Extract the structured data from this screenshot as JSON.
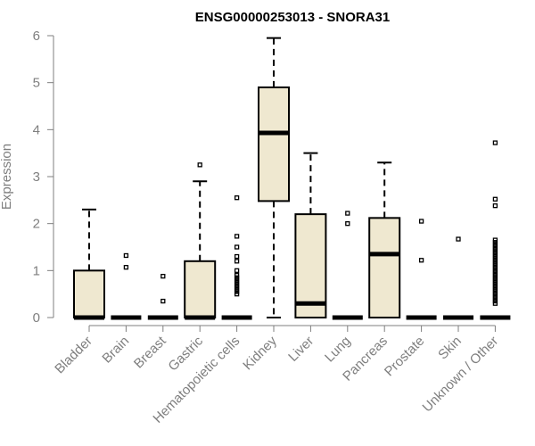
{
  "chart_data": {
    "type": "box",
    "title": "ENSG00000253013 - SNORA31",
    "xlabel": "",
    "ylabel": "Expression",
    "ylim": [
      0,
      6
    ],
    "yticks": [
      0,
      1,
      2,
      3,
      4,
      5,
      6
    ],
    "categories": [
      "Bladder",
      "Brain",
      "Breast",
      "Gastric",
      "Hematopoietic cells",
      "Kidney",
      "Liver",
      "Lung",
      "Pancreas",
      "Prostate",
      "Skin",
      "Unknown / Other"
    ],
    "box_color": "#efe8d0",
    "boxes": [
      {
        "category": "Bladder",
        "q1": 0,
        "median": 0,
        "q3": 1.0,
        "whisker_low": 0,
        "whisker_high": 2.3,
        "outliers": []
      },
      {
        "category": "Brain",
        "q1": 0,
        "median": 0,
        "q3": 0,
        "whisker_low": 0,
        "whisker_high": 0,
        "outliers": [
          1.07,
          1.32
        ]
      },
      {
        "category": "Breast",
        "q1": 0,
        "median": 0,
        "q3": 0,
        "whisker_low": 0,
        "whisker_high": 0,
        "outliers": [
          0.35,
          0.88
        ]
      },
      {
        "category": "Gastric",
        "q1": 0,
        "median": 0,
        "q3": 1.2,
        "whisker_low": 0,
        "whisker_high": 2.9,
        "outliers": [
          3.25
        ]
      },
      {
        "category": "Hematopoietic cells",
        "q1": 0,
        "median": 0,
        "q3": 0,
        "whisker_low": 0,
        "whisker_high": 0,
        "outliers": [
          0.5,
          0.55,
          0.6,
          0.65,
          0.7,
          0.75,
          0.8,
          0.85,
          0.9,
          1.0,
          1.2,
          1.3,
          1.5,
          1.73,
          2.55
        ]
      },
      {
        "category": "Kidney",
        "q1": 2.48,
        "median": 3.93,
        "q3": 4.9,
        "whisker_low": 0,
        "whisker_high": 5.95,
        "outliers": []
      },
      {
        "category": "Liver",
        "q1": 0,
        "median": 0.3,
        "q3": 2.2,
        "whisker_low": 0,
        "whisker_high": 3.5,
        "outliers": []
      },
      {
        "category": "Lung",
        "q1": 0,
        "median": 0,
        "q3": 0,
        "whisker_low": 0,
        "whisker_high": 0,
        "outliers": [
          2.0,
          2.22
        ]
      },
      {
        "category": "Pancreas",
        "q1": 0,
        "median": 1.35,
        "q3": 2.12,
        "whisker_low": 0,
        "whisker_high": 3.3,
        "outliers": []
      },
      {
        "category": "Prostate",
        "q1": 0,
        "median": 0,
        "q3": 0,
        "whisker_low": 0,
        "whisker_high": 0,
        "outliers": [
          1.22,
          2.05
        ]
      },
      {
        "category": "Skin",
        "q1": 0,
        "median": 0,
        "q3": 0,
        "whisker_low": 0,
        "whisker_high": 0,
        "outliers": [
          1.67
        ]
      },
      {
        "category": "Unknown / Other",
        "q1": 0,
        "median": 0,
        "q3": 0,
        "whisker_low": 0,
        "whisker_high": 0,
        "outliers": [
          0.3,
          0.35,
          0.4,
          0.45,
          0.5,
          0.55,
          0.6,
          0.65,
          0.7,
          0.75,
          0.8,
          0.85,
          0.9,
          0.95,
          1.0,
          1.05,
          1.1,
          1.15,
          1.2,
          1.25,
          1.3,
          1.35,
          1.4,
          1.45,
          1.5,
          1.55,
          1.6,
          1.65,
          2.38,
          2.52,
          3.72
        ]
      }
    ]
  }
}
